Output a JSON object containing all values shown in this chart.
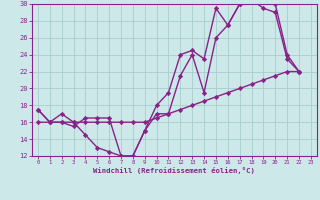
{
  "xlabel": "Windchill (Refroidissement éolien,°C)",
  "x": [
    0,
    1,
    2,
    3,
    4,
    5,
    6,
    7,
    8,
    9,
    10,
    11,
    12,
    13,
    14,
    15,
    16,
    17,
    18,
    19,
    20,
    21,
    22,
    23
  ],
  "line1": [
    17.5,
    16,
    17,
    16,
    14.5,
    13,
    12.5,
    12,
    12,
    15,
    18,
    19.5,
    24,
    24.5,
    23.5,
    29.5,
    27.5,
    30,
    30.5,
    29.5,
    29,
    23.5,
    22,
    null
  ],
  "line2": [
    17.5,
    16,
    16,
    15.5,
    16.5,
    16.5,
    16.5,
    12,
    12,
    15,
    17,
    17,
    21.5,
    24,
    19.5,
    26,
    27.5,
    30,
    30.5,
    30.5,
    30,
    24,
    22,
    null
  ],
  "line3": [
    16,
    16,
    16,
    16,
    16,
    16,
    16,
    16,
    16,
    16,
    16.5,
    17,
    17.5,
    18,
    18.5,
    19,
    19.5,
    20,
    20.5,
    21,
    21.5,
    22,
    22,
    null
  ],
  "ylim": [
    12,
    30
  ],
  "xlim": [
    -0.5,
    23.5
  ],
  "yticks": [
    12,
    14,
    16,
    18,
    20,
    22,
    24,
    26,
    28,
    30
  ],
  "xticks": [
    0,
    1,
    2,
    3,
    4,
    5,
    6,
    7,
    8,
    9,
    10,
    11,
    12,
    13,
    14,
    15,
    16,
    17,
    18,
    19,
    20,
    21,
    22,
    23
  ],
  "line_color": "#882288",
  "bg_color": "#cce8e8",
  "grid_color": "#aacccc",
  "marker": "D",
  "marker_size": 2.2,
  "linewidth": 1.0
}
